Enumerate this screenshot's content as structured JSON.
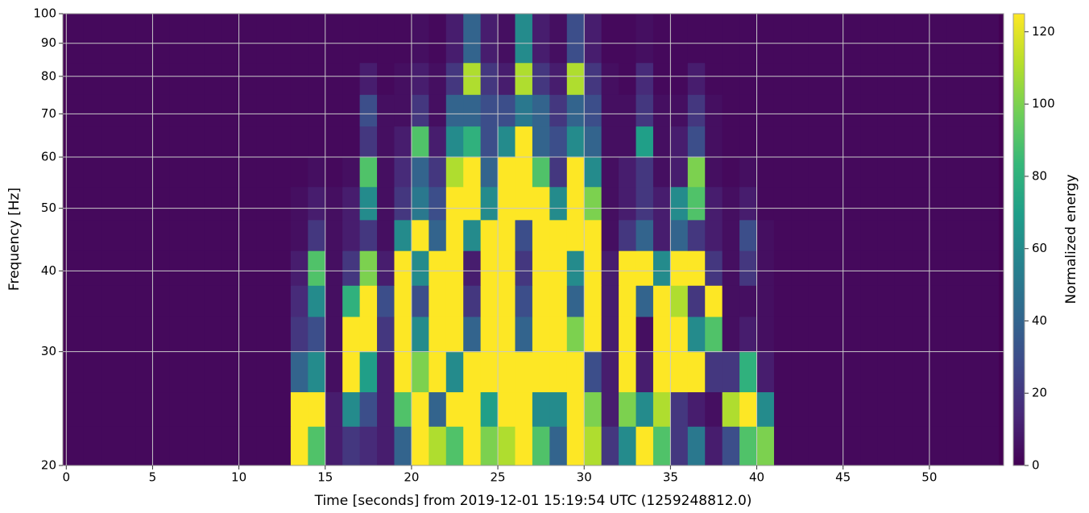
{
  "chart_data": {
    "type": "heatmap",
    "xlabel": "Time [seconds] from 2019-12-01 15:19:54 UTC (1259248812.0)",
    "ylabel": "Frequency [Hz]",
    "colorbar_label": "Normalized energy",
    "colormap": "viridis",
    "ylog": true,
    "grid": true,
    "xlim": [
      -0.2,
      54.3
    ],
    "ylim": [
      20,
      100
    ],
    "clim": [
      0,
      125
    ],
    "xticks": [
      0,
      5,
      10,
      15,
      20,
      25,
      30,
      35,
      40,
      45,
      50
    ],
    "yticks": [
      20,
      30,
      40,
      50,
      60,
      70,
      80,
      90,
      100
    ],
    "cticks": [
      0,
      20,
      40,
      60,
      80,
      100,
      120
    ],
    "xbins": [
      0,
      1,
      2,
      3,
      4,
      5,
      6,
      7,
      8,
      9,
      10,
      11,
      12,
      13,
      14,
      15,
      16,
      17,
      18,
      19,
      20,
      21,
      22,
      23,
      24,
      25,
      26,
      27,
      28,
      29,
      30,
      31,
      32,
      33,
      34,
      35,
      36,
      37,
      38,
      39,
      40,
      41,
      42,
      43,
      44,
      45,
      46,
      47,
      48,
      49,
      50,
      51,
      52,
      53,
      54
    ],
    "ybins": [
      20,
      23,
      26,
      30,
      34,
      38,
      43,
      48,
      54,
      60,
      67,
      75,
      84,
      100
    ],
    "values": [
      [
        3,
        3,
        3,
        3,
        3,
        3,
        3,
        3,
        3,
        3,
        3,
        3,
        3,
        125,
        90,
        10,
        20,
        15,
        10,
        40,
        125,
        110,
        90,
        125,
        100,
        110,
        125,
        90,
        40,
        125,
        110,
        20,
        60,
        125,
        90,
        20,
        50,
        10,
        30,
        90,
        100,
        3,
        3,
        3,
        3,
        3,
        3,
        3,
        3,
        3,
        3,
        3,
        3,
        3
      ],
      [
        3,
        3,
        3,
        3,
        3,
        3,
        3,
        3,
        3,
        3,
        3,
        3,
        3,
        125,
        125,
        10,
        60,
        30,
        10,
        90,
        125,
        40,
        125,
        125,
        70,
        125,
        125,
        60,
        60,
        125,
        100,
        10,
        100,
        60,
        110,
        20,
        10,
        5,
        110,
        125,
        60,
        3,
        3,
        3,
        3,
        3,
        3,
        3,
        3,
        3,
        3,
        3,
        3,
        3
      ],
      [
        3,
        3,
        3,
        3,
        3,
        3,
        3,
        3,
        3,
        3,
        3,
        3,
        3,
        40,
        60,
        5,
        125,
        70,
        10,
        125,
        100,
        125,
        60,
        125,
        125,
        125,
        125,
        125,
        125,
        125,
        30,
        10,
        125,
        10,
        125,
        125,
        125,
        20,
        20,
        80,
        10,
        3,
        3,
        3,
        3,
        3,
        3,
        3,
        3,
        3,
        3,
        3,
        3,
        3
      ],
      [
        3,
        3,
        3,
        3,
        3,
        3,
        3,
        3,
        3,
        3,
        3,
        3,
        3,
        20,
        30,
        5,
        125,
        125,
        20,
        125,
        60,
        125,
        125,
        40,
        125,
        125,
        40,
        125,
        125,
        100,
        125,
        10,
        125,
        5,
        125,
        125,
        60,
        90,
        5,
        10,
        5,
        3,
        3,
        3,
        3,
        3,
        3,
        3,
        3,
        3,
        3,
        3,
        3,
        3
      ],
      [
        3,
        3,
        3,
        3,
        3,
        3,
        3,
        3,
        3,
        3,
        3,
        3,
        3,
        15,
        60,
        5,
        80,
        125,
        30,
        125,
        30,
        125,
        125,
        20,
        125,
        125,
        30,
        125,
        125,
        40,
        125,
        10,
        125,
        40,
        125,
        110,
        20,
        125,
        5,
        5,
        5,
        3,
        3,
        3,
        3,
        3,
        3,
        3,
        3,
        3,
        3,
        3,
        3,
        3
      ],
      [
        3,
        3,
        3,
        3,
        3,
        3,
        3,
        3,
        3,
        3,
        3,
        3,
        3,
        10,
        90,
        5,
        20,
        100,
        10,
        125,
        60,
        125,
        125,
        10,
        125,
        125,
        20,
        125,
        125,
        60,
        125,
        10,
        125,
        125,
        60,
        125,
        125,
        20,
        5,
        20,
        5,
        3,
        3,
        3,
        3,
        3,
        3,
        3,
        3,
        3,
        3,
        3,
        3,
        3
      ],
      [
        3,
        3,
        3,
        3,
        3,
        3,
        3,
        3,
        3,
        3,
        3,
        3,
        3,
        5,
        20,
        5,
        10,
        20,
        5,
        60,
        125,
        40,
        125,
        60,
        125,
        125,
        30,
        125,
        125,
        125,
        125,
        5,
        20,
        40,
        10,
        40,
        20,
        10,
        5,
        30,
        5,
        3,
        3,
        3,
        3,
        3,
        3,
        3,
        3,
        3,
        3,
        3,
        3,
        3
      ],
      [
        3,
        3,
        3,
        3,
        3,
        3,
        3,
        3,
        3,
        3,
        3,
        3,
        3,
        5,
        10,
        5,
        10,
        60,
        5,
        20,
        50,
        30,
        125,
        125,
        60,
        125,
        125,
        125,
        60,
        125,
        100,
        5,
        10,
        20,
        10,
        60,
        90,
        10,
        5,
        10,
        3,
        3,
        3,
        3,
        3,
        3,
        3,
        3,
        3,
        3,
        3,
        3,
        3,
        3
      ],
      [
        3,
        3,
        3,
        3,
        3,
        3,
        3,
        3,
        3,
        3,
        3,
        3,
        3,
        3,
        5,
        3,
        5,
        90,
        5,
        15,
        40,
        20,
        110,
        125,
        40,
        125,
        125,
        90,
        20,
        125,
        60,
        5,
        10,
        20,
        5,
        10,
        100,
        5,
        3,
        5,
        3,
        3,
        3,
        3,
        3,
        3,
        3,
        3,
        3,
        3,
        3,
        3,
        3,
        3
      ],
      [
        3,
        3,
        3,
        3,
        3,
        3,
        3,
        3,
        3,
        3,
        3,
        3,
        3,
        3,
        3,
        3,
        3,
        20,
        5,
        10,
        90,
        10,
        60,
        80,
        30,
        60,
        125,
        40,
        30,
        60,
        40,
        5,
        5,
        70,
        5,
        10,
        30,
        5,
        3,
        3,
        3,
        3,
        3,
        3,
        3,
        3,
        3,
        3,
        3,
        3,
        3,
        3,
        3,
        3
      ],
      [
        3,
        3,
        3,
        3,
        3,
        3,
        3,
        3,
        3,
        3,
        3,
        3,
        3,
        3,
        3,
        3,
        3,
        30,
        5,
        5,
        20,
        5,
        40,
        40,
        30,
        30,
        50,
        40,
        20,
        40,
        30,
        5,
        5,
        20,
        5,
        5,
        20,
        5,
        3,
        3,
        3,
        3,
        3,
        3,
        3,
        3,
        3,
        3,
        3,
        3,
        3,
        3,
        3,
        3
      ],
      [
        3,
        3,
        3,
        3,
        3,
        3,
        3,
        3,
        3,
        3,
        3,
        3,
        3,
        3,
        3,
        3,
        3,
        10,
        3,
        5,
        10,
        5,
        20,
        110,
        20,
        10,
        110,
        20,
        10,
        110,
        20,
        5,
        3,
        15,
        3,
        3,
        10,
        3,
        3,
        3,
        3,
        3,
        3,
        3,
        3,
        3,
        3,
        3,
        3,
        3,
        3,
        3,
        3,
        3
      ],
      [
        3,
        3,
        3,
        3,
        3,
        3,
        3,
        3,
        3,
        3,
        3,
        3,
        3,
        3,
        3,
        3,
        3,
        3,
        3,
        3,
        5,
        3,
        10,
        40,
        10,
        5,
        60,
        10,
        5,
        30,
        10,
        3,
        3,
        5,
        3,
        3,
        3,
        3,
        3,
        3,
        3,
        3,
        3,
        3,
        3,
        3,
        3,
        3,
        3,
        3,
        3,
        3,
        3,
        3
      ]
    ]
  }
}
